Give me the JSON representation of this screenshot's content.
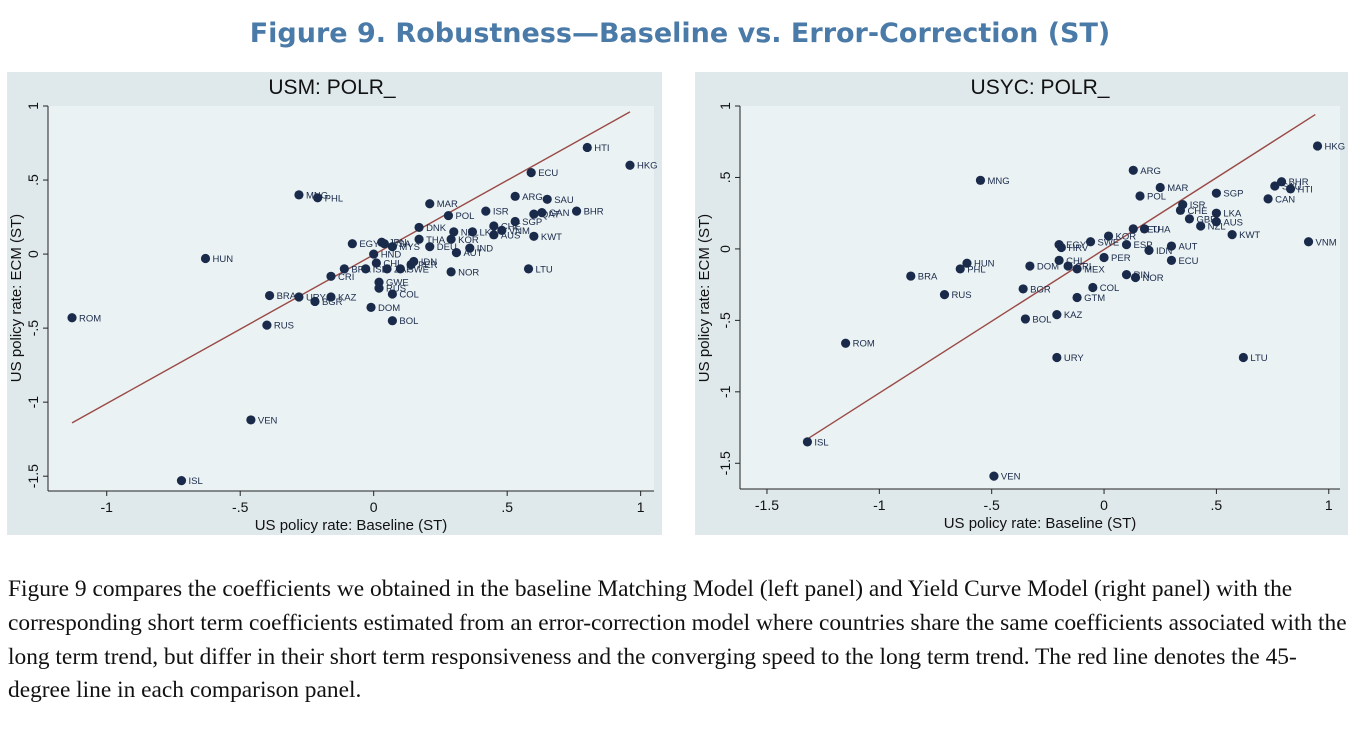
{
  "figure": {
    "title": "Figure 9. Robustness—Baseline vs. Error-Correction (ST)",
    "caption": "Figure 9 compares the coefficients we obtained in the baseline Matching Model (left panel) and Yield Curve Model (right panel) with the corresponding short term coefficients estimated from an error-correction model where countries share the same coefficients associated with the long term trend, but differ in their short term responsiveness and the converging speed to the long term trend. The red line denotes the 45-degree line in each comparison panel."
  },
  "colors": {
    "title": "#4a7aa8",
    "plot_bg": "#eaf2f3",
    "outer_bg": "#dfe9ec",
    "marker": "#1a2a4a",
    "fit_line": "#9a4a46"
  },
  "chart_data": [
    {
      "type": "scatter",
      "title": "USM: POLR_",
      "xlabel": "US policy rate: Baseline (ST)",
      "ylabel": "US policy rate: ECM (ST)",
      "xlim": [
        -1.22,
        1.05
      ],
      "ylim": [
        -1.6,
        1.0
      ],
      "xticks": [
        -1,
        -0.5,
        0,
        0.5,
        1
      ],
      "xtick_labels": [
        "-1",
        "-.5",
        "0",
        ".5",
        "1"
      ],
      "yticks": [
        -1.5,
        -1,
        -0.5,
        0,
        0.5,
        1
      ],
      "ytick_labels": [
        "-1.5",
        "-1",
        "-.5",
        "0",
        ".5",
        "1"
      ],
      "line": {
        "x": [
          -1.13,
          0.96
        ],
        "y": [
          -1.14,
          0.96
        ]
      },
      "points": [
        {
          "label": "HTI",
          "x": 0.8,
          "y": 0.72
        },
        {
          "label": "HKG",
          "x": 0.96,
          "y": 0.6
        },
        {
          "label": "ECU",
          "x": 0.59,
          "y": 0.55
        },
        {
          "label": "MNG",
          "x": -0.28,
          "y": 0.4
        },
        {
          "label": "PHL",
          "x": -0.21,
          "y": 0.38
        },
        {
          "label": "ARG",
          "x": 0.53,
          "y": 0.39
        },
        {
          "label": "SAU",
          "x": 0.65,
          "y": 0.37
        },
        {
          "label": "MAR",
          "x": 0.21,
          "y": 0.34
        },
        {
          "label": "ISR",
          "x": 0.42,
          "y": 0.29
        },
        {
          "label": "BHR",
          "x": 0.76,
          "y": 0.29
        },
        {
          "label": "GAN",
          "x": 0.63,
          "y": 0.28
        },
        {
          "label": "QAT",
          "x": 0.6,
          "y": 0.27
        },
        {
          "label": "POL",
          "x": 0.28,
          "y": 0.26
        },
        {
          "label": "SGP",
          "x": 0.53,
          "y": 0.22
        },
        {
          "label": "CHE",
          "x": 0.45,
          "y": 0.19
        },
        {
          "label": "VNM",
          "x": 0.48,
          "y": 0.16
        },
        {
          "label": "DNK",
          "x": 0.17,
          "y": 0.18
        },
        {
          "label": "KWT",
          "x": 0.6,
          "y": 0.12
        },
        {
          "label": "AUS",
          "x": 0.45,
          "y": 0.13
        },
        {
          "label": "LKA",
          "x": 0.37,
          "y": 0.15
        },
        {
          "label": "NZL",
          "x": 0.3,
          "y": 0.15
        },
        {
          "label": "KOR",
          "x": 0.29,
          "y": 0.1
        },
        {
          "label": "EGY",
          "x": -0.08,
          "y": 0.07
        },
        {
          "label": "THA",
          "x": 0.17,
          "y": 0.1
        },
        {
          "label": "IND",
          "x": 0.36,
          "y": 0.04
        },
        {
          "label": "DEU",
          "x": 0.21,
          "y": 0.05
        },
        {
          "label": "AUT",
          "x": 0.31,
          "y": 0.01
        },
        {
          "label": "MYS",
          "x": 0.07,
          "y": 0.05
        },
        {
          "label": "USA",
          "x": 0.04,
          "y": 0.07
        },
        {
          "label": "JPN",
          "x": 0.03,
          "y": 0.08
        },
        {
          "label": "HND",
          "x": 0.0,
          "y": 0.0
        },
        {
          "label": "CHL",
          "x": 0.01,
          "y": -0.06
        },
        {
          "label": "IDN",
          "x": 0.15,
          "y": -0.05
        },
        {
          "label": "PER",
          "x": 0.14,
          "y": -0.07
        },
        {
          "label": "LTU",
          "x": 0.58,
          "y": -0.1
        },
        {
          "label": "HUN",
          "x": -0.63,
          "y": -0.03
        },
        {
          "label": "NOR",
          "x": 0.29,
          "y": -0.12
        },
        {
          "label": "ZAF",
          "x": 0.05,
          "y": -0.1
        },
        {
          "label": "SWE",
          "x": 0.1,
          "y": -0.1
        },
        {
          "label": "ISL",
          "x": -0.03,
          "y": -0.1
        },
        {
          "label": "BRA",
          "x": -0.11,
          "y": -0.1
        },
        {
          "label": "CRI",
          "x": -0.16,
          "y": -0.15
        },
        {
          "label": "BRA",
          "x": -0.39,
          "y": -0.28
        },
        {
          "label": "URY",
          "x": -0.28,
          "y": -0.29
        },
        {
          "label": "KAZ",
          "x": -0.16,
          "y": -0.29
        },
        {
          "label": "BGR",
          "x": -0.22,
          "y": -0.32
        },
        {
          "label": "GWE",
          "x": 0.02,
          "y": -0.19
        },
        {
          "label": "RUS",
          "x": 0.02,
          "y": -0.23
        },
        {
          "label": "COL",
          "x": 0.07,
          "y": -0.27
        },
        {
          "label": "DOM",
          "x": -0.01,
          "y": -0.36
        },
        {
          "label": "BOL",
          "x": 0.07,
          "y": -0.45
        },
        {
          "label": "ROM",
          "x": -1.13,
          "y": -0.43
        },
        {
          "label": "RUS",
          "x": -0.4,
          "y": -0.48
        },
        {
          "label": "VEN",
          "x": -0.46,
          "y": -1.12
        },
        {
          "label": "ISL",
          "x": -0.72,
          "y": -1.53
        }
      ]
    },
    {
      "type": "scatter",
      "title": "USYC: POLR_",
      "xlabel": "US policy rate: Baseline (ST)",
      "ylabel": "US policy rate: ECM (ST)",
      "xlim": [
        -1.62,
        1.05
      ],
      "ylim": [
        -1.68,
        1.0
      ],
      "xticks": [
        -1.5,
        -1,
        -0.5,
        0,
        0.5,
        1
      ],
      "xtick_labels": [
        "-1.5",
        "-1",
        "-.5",
        "0",
        ".5",
        "1"
      ],
      "yticks": [
        -1.5,
        -1,
        -0.5,
        0,
        0.5,
        1
      ],
      "ytick_labels": [
        "-1.5",
        "-1",
        "-.5",
        "0",
        ".5",
        "1"
      ],
      "line": {
        "x": [
          -1.33,
          0.94
        ],
        "y": [
          -1.34,
          0.94
        ]
      },
      "points": [
        {
          "label": "HKG",
          "x": 0.95,
          "y": 0.72
        },
        {
          "label": "BHR",
          "x": 0.79,
          "y": 0.47
        },
        {
          "label": "HTI",
          "x": 0.83,
          "y": 0.42
        },
        {
          "label": "SAU",
          "x": 0.76,
          "y": 0.44
        },
        {
          "label": "CAN",
          "x": 0.73,
          "y": 0.35
        },
        {
          "label": "SGP",
          "x": 0.5,
          "y": 0.39
        },
        {
          "label": "ARG",
          "x": 0.13,
          "y": 0.55
        },
        {
          "label": "MNG",
          "x": -0.55,
          "y": 0.48
        },
        {
          "label": "MAR",
          "x": 0.25,
          "y": 0.43
        },
        {
          "label": "POL",
          "x": 0.16,
          "y": 0.37
        },
        {
          "label": "ISR",
          "x": 0.35,
          "y": 0.31
        },
        {
          "label": "CHE",
          "x": 0.34,
          "y": 0.27
        },
        {
          "label": "LKA",
          "x": 0.5,
          "y": 0.25
        },
        {
          "label": "GBR",
          "x": 0.38,
          "y": 0.21
        },
        {
          "label": "AUS",
          "x": 0.5,
          "y": 0.19
        },
        {
          "label": "NZL",
          "x": 0.43,
          "y": 0.16
        },
        {
          "label": "KWT",
          "x": 0.57,
          "y": 0.1
        },
        {
          "label": "VNM",
          "x": 0.91,
          "y": 0.05
        },
        {
          "label": "DEU",
          "x": 0.13,
          "y": 0.14
        },
        {
          "label": "THA",
          "x": 0.18,
          "y": 0.14
        },
        {
          "label": "KOR",
          "x": 0.02,
          "y": 0.09
        },
        {
          "label": "SWE",
          "x": -0.06,
          "y": 0.05
        },
        {
          "label": "EGY",
          "x": -0.2,
          "y": 0.03
        },
        {
          "label": "HRV",
          "x": -0.19,
          "y": 0.01
        },
        {
          "label": "ESP",
          "x": 0.1,
          "y": 0.03
        },
        {
          "label": "AUT",
          "x": 0.3,
          "y": 0.02
        },
        {
          "label": "IDN",
          "x": 0.2,
          "y": -0.01
        },
        {
          "label": "ECU",
          "x": 0.3,
          "y": -0.08
        },
        {
          "label": "PER",
          "x": 0.0,
          "y": -0.06
        },
        {
          "label": "CHL",
          "x": -0.2,
          "y": -0.08
        },
        {
          "label": "DOM",
          "x": -0.33,
          "y": -0.12
        },
        {
          "label": "MEX",
          "x": -0.12,
          "y": -0.14
        },
        {
          "label": "CRI",
          "x": -0.16,
          "y": -0.12
        },
        {
          "label": "HUN",
          "x": -0.61,
          "y": -0.1
        },
        {
          "label": "PHL",
          "x": -0.64,
          "y": -0.14
        },
        {
          "label": "RIN",
          "x": 0.1,
          "y": -0.18
        },
        {
          "label": "NOR",
          "x": 0.14,
          "y": -0.2
        },
        {
          "label": "BRA",
          "x": -0.86,
          "y": -0.19
        },
        {
          "label": "RUS",
          "x": -0.71,
          "y": -0.32
        },
        {
          "label": "BGR",
          "x": -0.36,
          "y": -0.28
        },
        {
          "label": "COL",
          "x": -0.05,
          "y": -0.27
        },
        {
          "label": "GTM",
          "x": -0.12,
          "y": -0.34
        },
        {
          "label": "KAZ",
          "x": -0.21,
          "y": -0.46
        },
        {
          "label": "BOL",
          "x": -0.35,
          "y": -0.49
        },
        {
          "label": "ROM",
          "x": -1.15,
          "y": -0.66
        },
        {
          "label": "URY",
          "x": -0.21,
          "y": -0.76
        },
        {
          "label": "LTU",
          "x": 0.62,
          "y": -0.76
        },
        {
          "label": "ISL",
          "x": -1.32,
          "y": -1.35
        },
        {
          "label": "VEN",
          "x": -0.49,
          "y": -1.59
        }
      ]
    }
  ]
}
